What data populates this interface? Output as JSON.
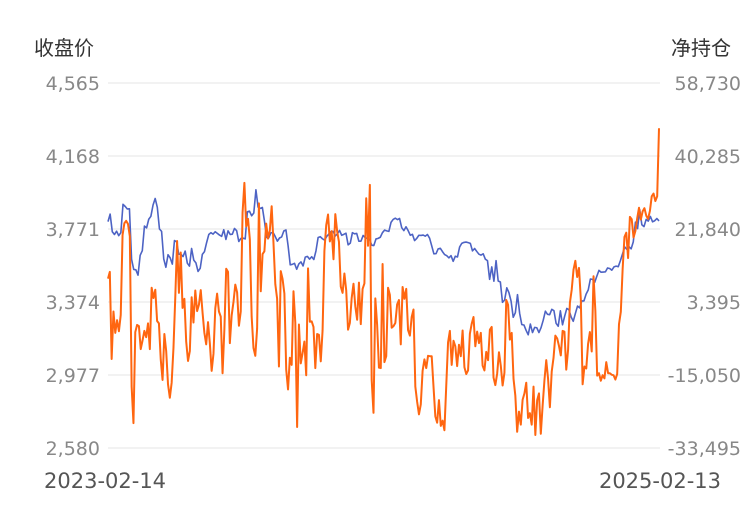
{
  "chart_data": {
    "type": "line",
    "left_axis_title": "收盘价",
    "right_axis_title": "净持仓",
    "left_ticks": [
      "4,565",
      "4,168",
      "3,771",
      "3,374",
      "2,977",
      "2,580"
    ],
    "right_ticks": [
      "58,730",
      "40,285",
      "21,840",
      "3,395",
      "-15,050",
      "-33,495"
    ],
    "left_range": [
      2580,
      4565
    ],
    "right_range": [
      -33495,
      58730
    ],
    "x_start_label": "2023-02-14",
    "x_end_label": "2025-02-13",
    "grid": true,
    "colors": {
      "price": "#4d63c4",
      "net_position": "#ff6610"
    },
    "series": [
      {
        "axis": "left",
        "values": [
          3811,
          3852,
          3756,
          3741,
          3759,
          3735,
          3751,
          3905,
          3894,
          3880,
          3881,
          3606,
          3551,
          3549,
          3520,
          3628,
          3653,
          3787,
          3777,
          3824,
          3840,
          3901,
          3937,
          3889,
          3771,
          3758,
          3608,
          3563,
          3631,
          3614,
          3580,
          3708,
          3701,
          3634,
          3634,
          3621,
          3651,
          3585,
          3569,
          3665,
          3602,
          3587,
          3540,
          3557,
          3633,
          3648,
          3697,
          3741,
          3751,
          3743,
          3756,
          3747,
          3738,
          3731,
          3767,
          3714,
          3761,
          3741,
          3743,
          3774,
          3762,
          3703,
          3720,
          3721,
          3717,
          3865,
          3868,
          3843,
          3858,
          3984,
          3890,
          3883,
          3888,
          3812,
          3725,
          3724,
          3750,
          3752,
          3730,
          3705,
          3722,
          3728,
          3760,
          3766,
          3680,
          3576,
          3579,
          3584,
          3552,
          3581,
          3592,
          3570,
          3618,
          3622,
          3607,
          3620,
          3605,
          3652,
          3725,
          3729,
          3718,
          3711,
          3730,
          3744,
          3757,
          3758,
          3733,
          3745,
          3763,
          3737,
          3742,
          3748,
          3685,
          3694,
          3751,
          3745,
          3747,
          3705,
          3705,
          3736,
          3724,
          3719,
          3714,
          3683,
          3681,
          3717,
          3720,
          3726,
          3751,
          3765,
          3761,
          3758,
          3807,
          3823,
          3830,
          3822,
          3828,
          3778,
          3762,
          3783,
          3762,
          3737,
          3742,
          3708,
          3720,
          3737,
          3736,
          3738,
          3732,
          3741,
          3721,
          3679,
          3636,
          3637,
          3663,
          3666,
          3648,
          3632,
          3626,
          3614,
          3626,
          3595,
          3623,
          3619,
          3673,
          3693,
          3698,
          3700,
          3697,
          3693,
          3652,
          3665,
          3649,
          3634,
          3629,
          3636,
          3607,
          3599,
          3497,
          3565,
          3487,
          3599,
          3488,
          3483,
          3372,
          3385,
          3451,
          3425,
          3379,
          3291,
          3316,
          3414,
          3313,
          3251,
          3249,
          3220,
          3196,
          3254,
          3208,
          3236,
          3234,
          3208,
          3235,
          3275,
          3324,
          3307,
          3305,
          3334,
          3327,
          3258,
          3242,
          3326,
          3250,
          3297,
          3339,
          3332,
          3293,
          3269,
          3312,
          3352,
          3342,
          3380,
          3380,
          3417,
          3440,
          3499,
          3497,
          3481,
          3514,
          3546,
          3536,
          3537,
          3538,
          3559,
          3556,
          3547,
          3565,
          3569,
          3566,
          3599,
          3636,
          3674,
          3660,
          3675,
          3663,
          3701,
          3808,
          3773,
          3877,
          3794,
          3784,
          3823,
          3814,
          3839,
          3810,
          3816,
          3828,
          3815
        ]
      },
      {
        "axis": "right",
        "values": [
          9300,
          11000,
          -11000,
          1000,
          -4400,
          -1200,
          -4000,
          100,
          20300,
          23300,
          23900,
          23100,
          20000,
          -18000,
          -27200,
          -4200,
          -2400,
          -2700,
          -8500,
          -6300,
          -3900,
          -5500,
          -2000,
          -8500,
          7000,
          4400,
          6500,
          -1400,
          -2000,
          -11100,
          -16300,
          -4700,
          -9000,
          -17400,
          -20800,
          -17000,
          -8200,
          4600,
          18800,
          5700,
          15900,
          1900,
          4200,
          -6600,
          -11500,
          -9000,
          4600,
          -1800,
          6300,
          1100,
          2700,
          6400,
          700,
          -4400,
          -7300,
          -1700,
          -7000,
          -14000,
          -9700,
          1800,
          5500,
          1000,
          -300,
          -14600,
          -3500,
          11800,
          11000,
          -7000,
          0,
          3400,
          7800,
          5800,
          -2600,
          1000,
          26000,
          33500,
          22500,
          24400,
          19200,
          -300,
          -8200,
          -10200,
          -3300,
          28300,
          6100,
          15500,
          16200,
          23200,
          19400,
          21500,
          27600,
          18300,
          7900,
          4200,
          -12900,
          11200,
          9200,
          5500,
          -13700,
          -18700,
          -10700,
          -12500,
          6100,
          -1800,
          -28200,
          -2300,
          -12100,
          -9500,
          -6600,
          -15100,
          11900,
          -1600,
          -1500,
          -2900,
          -13300,
          -4700,
          -4900,
          -11600,
          -3800,
          16300,
          22800,
          25500,
          18700,
          21300,
          14200,
          25600,
          21300,
          18600,
          7300,
          5700,
          10600,
          6300,
          -3600,
          -1900,
          4400,
          8000,
          2300,
          -1100,
          8300,
          -2200,
          6700,
          8100,
          29600,
          17600,
          33000,
          -16300,
          -24600,
          4300,
          -2400,
          -13200,
          -13300,
          13000,
          -11800,
          -10300,
          7000,
          5200,
          -3100,
          -2700,
          -1900,
          2800,
          3900,
          -7300,
          7200,
          4200,
          6700,
          -3700,
          -5100,
          -400,
          1500,
          -18000,
          -21800,
          -25000,
          -22500,
          -14000,
          -11100,
          -13300,
          -10200,
          -10300,
          -10300,
          -18000,
          -25500,
          -27100,
          -21400,
          -27900,
          -26600,
          -29000,
          -17800,
          -6800,
          -3900,
          -12500,
          -6400,
          -7800,
          -12800,
          -7400,
          -10300,
          -3800,
          -13100,
          -14800,
          -13900,
          -4600,
          -2100,
          -400,
          -7800,
          -4100,
          -7000,
          -4400,
          -12700,
          -13900,
          -9200,
          -11300,
          -3600,
          -2900,
          -15700,
          -17600,
          -14700,
          -9300,
          -12700,
          -17700,
          -14500,
          3900,
          2700,
          -6100,
          -4400,
          -16000,
          -20300,
          -29400,
          -24300,
          -27600,
          -21300,
          -19700,
          -17000,
          -25900,
          -24700,
          -27600,
          -18000,
          -30200,
          -21400,
          -19700,
          -29900,
          -22800,
          -16400,
          -11300,
          -16000,
          -23200,
          -14200,
          -10700,
          -5100,
          -5800,
          -7700,
          -10100,
          -3900,
          -4100,
          -13700,
          -8700,
          3200,
          6500,
          11600,
          13800,
          9700,
          12000,
          4100,
          -17400,
          -12900,
          -13400,
          -7200,
          -4200,
          -9100,
          9900,
          1200,
          -15200,
          -14600,
          -16500,
          -15100,
          -15900,
          -11800,
          -14600,
          -14600,
          -15000,
          -15100,
          -16200,
          -14800,
          -2200,
          900,
          11700,
          19800,
          20900,
          14500,
          24900,
          24300,
          19700,
          21300,
          24500,
          27200,
          24200,
          26300,
          27100,
          25200,
          24400,
          26400,
          30100,
          30800,
          28900,
          30100,
          47300
        ]
      }
    ]
  }
}
